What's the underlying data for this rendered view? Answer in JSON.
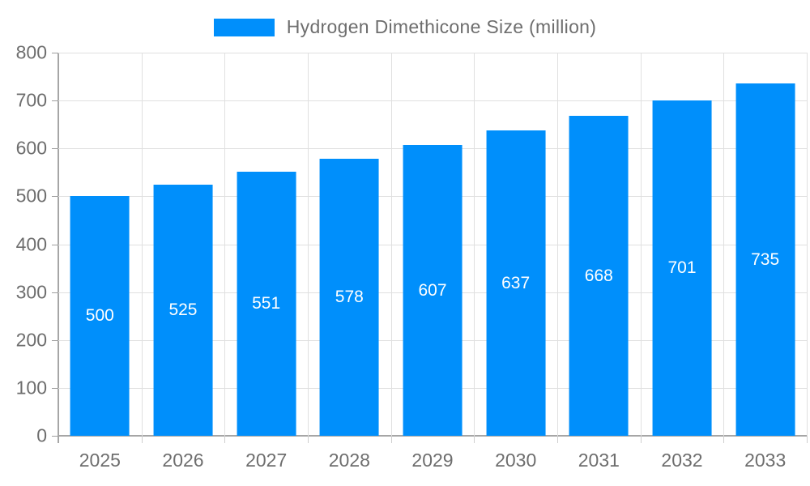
{
  "legend": {
    "label": "Hydrogen Dimethicone Size (million)"
  },
  "colors": {
    "bar": "#008FFB",
    "axis_line": "#a6a6a6",
    "grid_line": "#e0e0e0",
    "axis_text": "#6e6e6e",
    "value_text": "#ffffff",
    "background": "#ffffff"
  },
  "chart_data": {
    "type": "bar",
    "title": "Hydrogen Dimethicone Size (million)",
    "categories": [
      "2025",
      "2026",
      "2027",
      "2028",
      "2029",
      "2030",
      "2031",
      "2032",
      "2033"
    ],
    "values": [
      500,
      525,
      551,
      578,
      607,
      637,
      668,
      701,
      735
    ],
    "y_ticks": [
      "0",
      "100",
      "200",
      "300",
      "400",
      "500",
      "600",
      "700",
      "800"
    ],
    "xlabel": "",
    "ylabel": "",
    "ylim": [
      0,
      800
    ],
    "ytick_step": 100,
    "grid": "both",
    "legend_position": "top",
    "value_label_position": "inside-center",
    "bar_width_fraction": 0.71
  }
}
